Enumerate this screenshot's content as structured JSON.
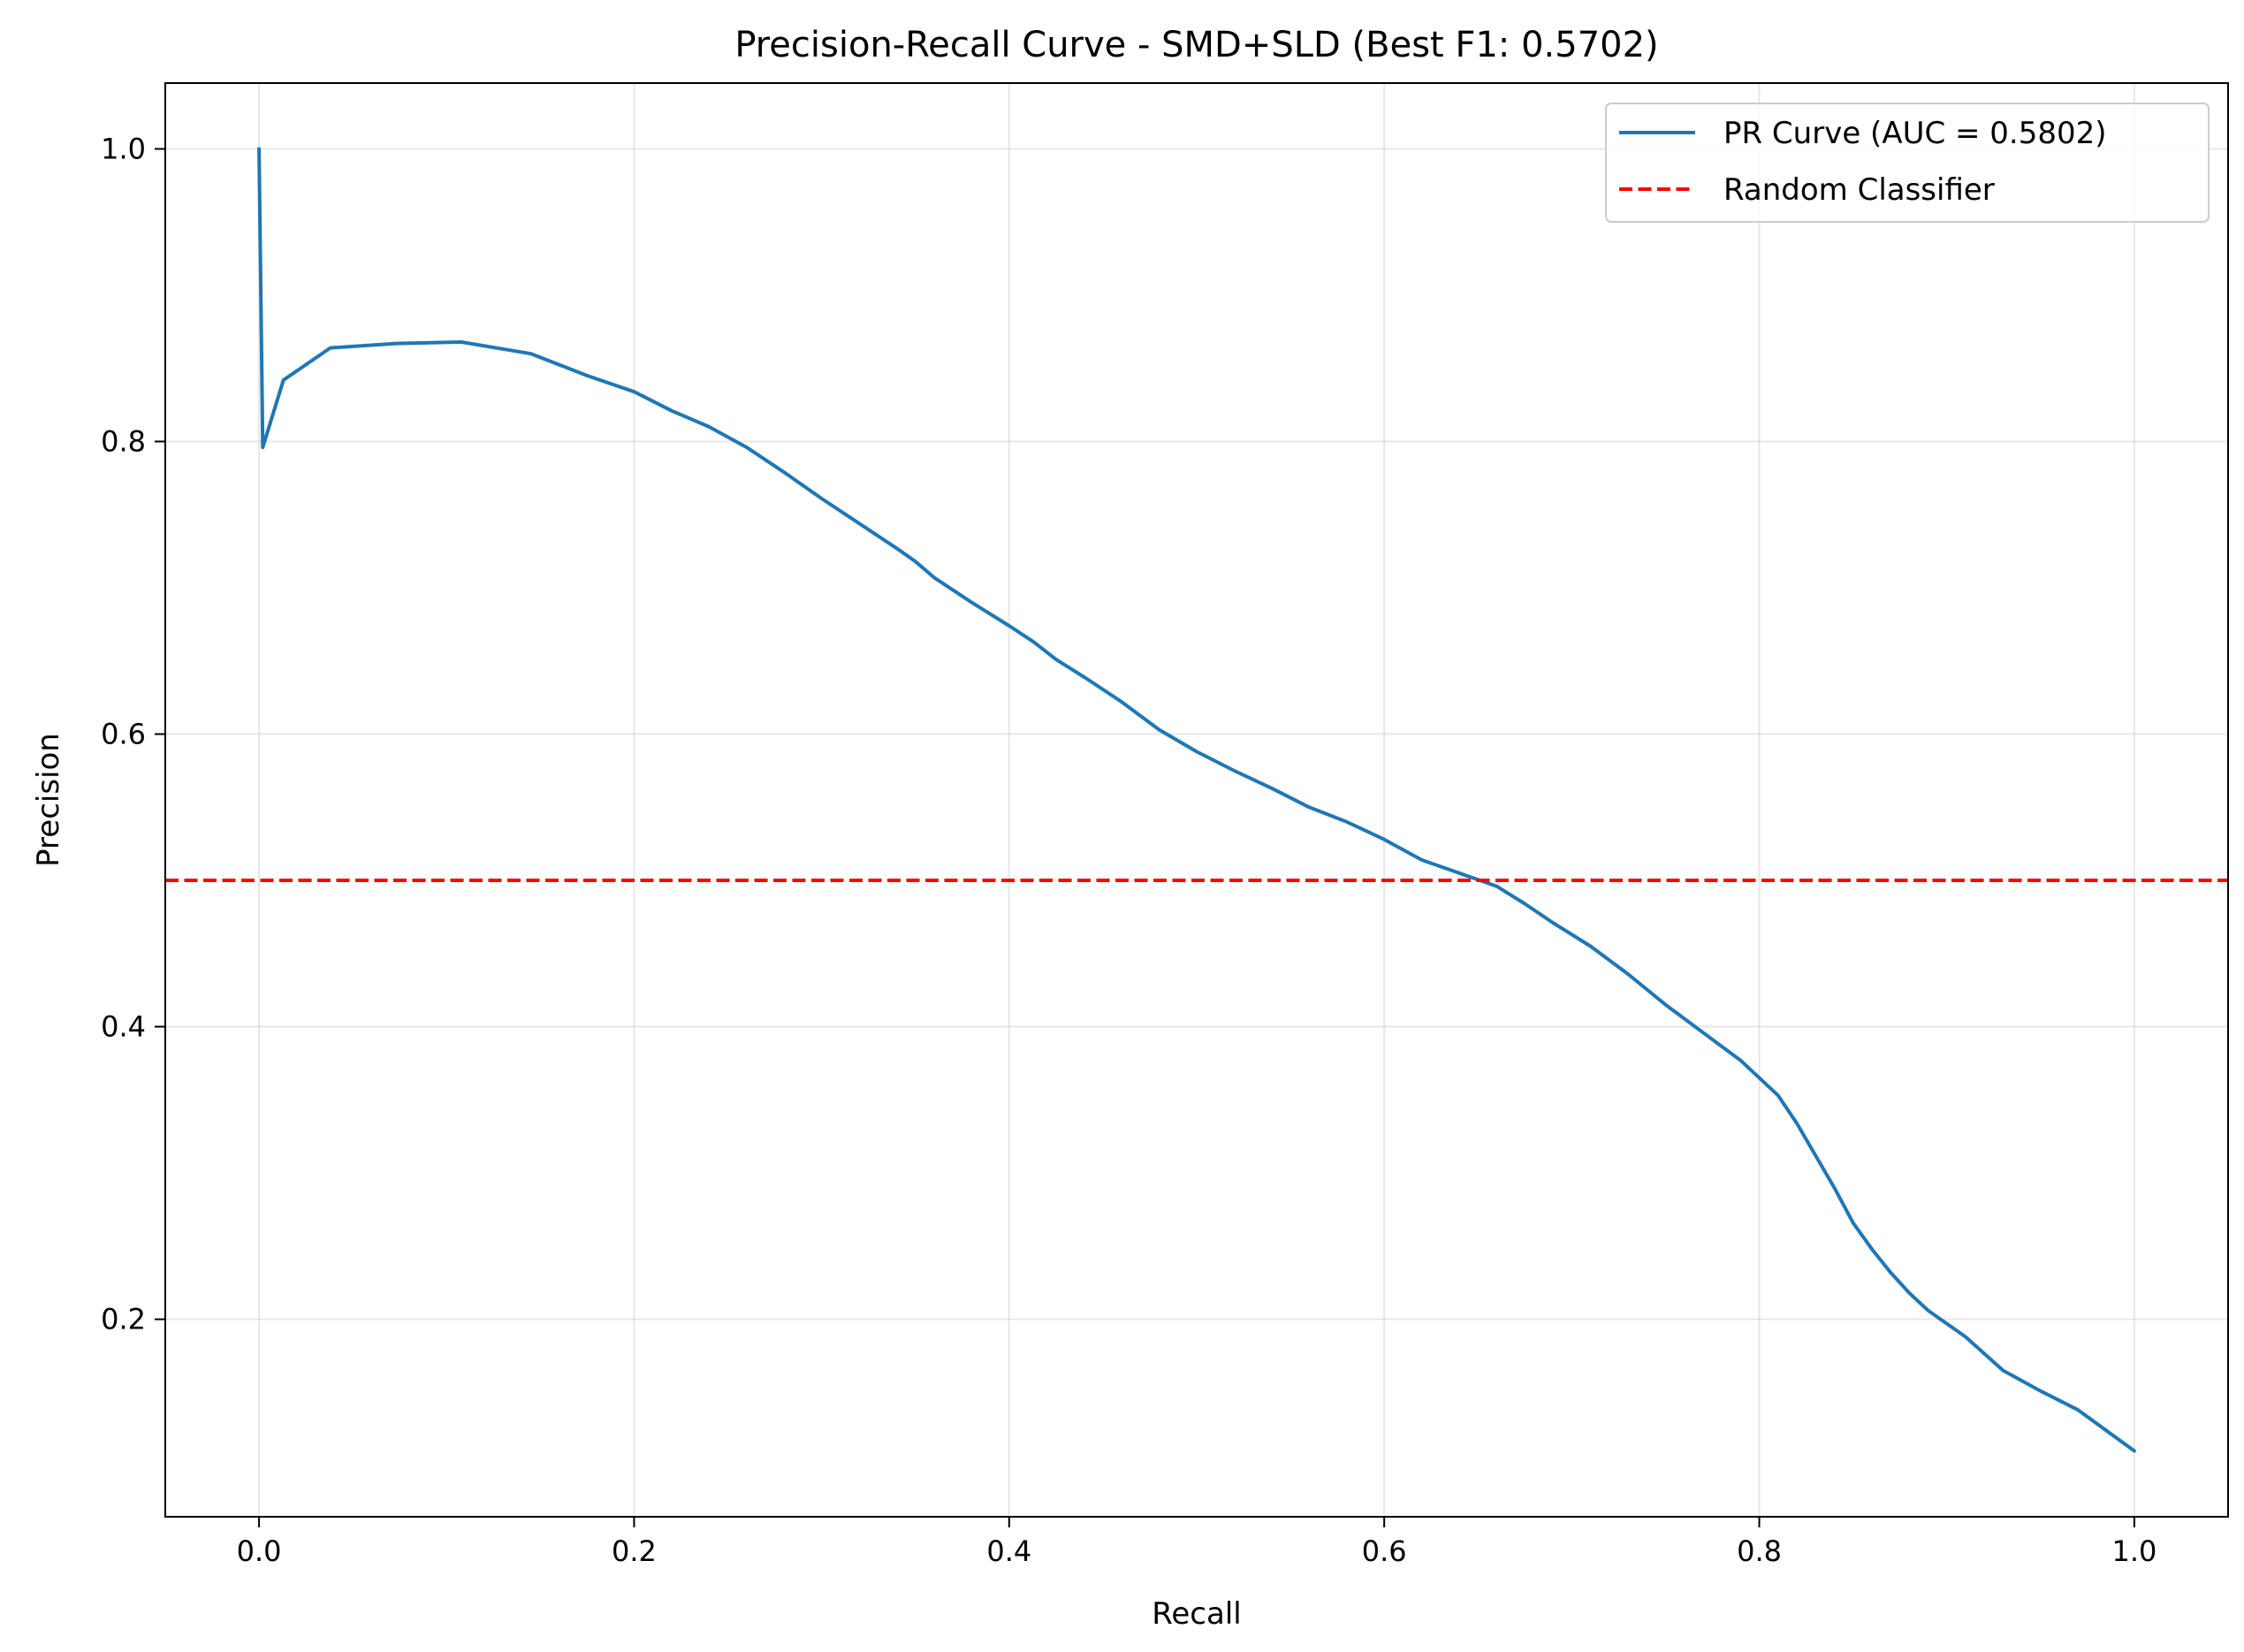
{
  "chart_data": {
    "type": "line",
    "title": "Precision-Recall Curve - SMD+SLD (Best F1: 0.5702)",
    "xlabel": "Recall",
    "ylabel": "Precision",
    "xlim": [
      -0.05,
      1.05
    ],
    "ylim": [
      0.065,
      1.045
    ],
    "xticks": [
      "0.0",
      "0.2",
      "0.4",
      "0.6",
      "0.8",
      "1.0"
    ],
    "xtick_values": [
      0.0,
      0.2,
      0.4,
      0.6,
      0.8,
      1.0
    ],
    "yticks": [
      "0.2",
      "0.4",
      "0.6",
      "0.8",
      "1.0"
    ],
    "ytick_values": [
      0.2,
      0.4,
      0.6,
      0.8,
      1.0
    ],
    "grid": true,
    "legend_position": "top-right",
    "series": [
      {
        "name": "PR Curve (AUC = 0.5802)",
        "color": "#1f77b4",
        "style": "solid",
        "x": [
          0.0,
          0.002,
          0.013,
          0.038,
          0.073,
          0.108,
          0.145,
          0.175,
          0.2,
          0.22,
          0.24,
          0.26,
          0.28,
          0.3,
          0.32,
          0.34,
          0.35,
          0.36,
          0.38,
          0.4,
          0.413,
          0.425,
          0.44,
          0.46,
          0.48,
          0.5,
          0.52,
          0.54,
          0.56,
          0.58,
          0.6,
          0.62,
          0.64,
          0.66,
          0.675,
          0.69,
          0.71,
          0.73,
          0.75,
          0.77,
          0.79,
          0.81,
          0.82,
          0.83,
          0.84,
          0.85,
          0.86,
          0.87,
          0.88,
          0.89,
          0.91,
          0.93,
          0.95,
          0.97,
          1.0
        ],
        "y": [
          1.0,
          0.796,
          0.842,
          0.864,
          0.867,
          0.868,
          0.86,
          0.845,
          0.834,
          0.821,
          0.81,
          0.796,
          0.779,
          0.761,
          0.744,
          0.727,
          0.718,
          0.707,
          0.69,
          0.674,
          0.663,
          0.651,
          0.639,
          0.622,
          0.603,
          0.588,
          0.575,
          0.563,
          0.55,
          0.54,
          0.528,
          0.514,
          0.505,
          0.496,
          0.484,
          0.471,
          0.455,
          0.436,
          0.415,
          0.396,
          0.377,
          0.353,
          0.334,
          0.312,
          0.29,
          0.266,
          0.248,
          0.232,
          0.218,
          0.206,
          0.188,
          0.165,
          0.151,
          0.138,
          0.11
        ]
      },
      {
        "name": "Random Classifier",
        "color": "#ff0000",
        "style": "dashed",
        "x": [
          -0.05,
          1.05
        ],
        "y": [
          0.5,
          0.5
        ]
      }
    ]
  }
}
